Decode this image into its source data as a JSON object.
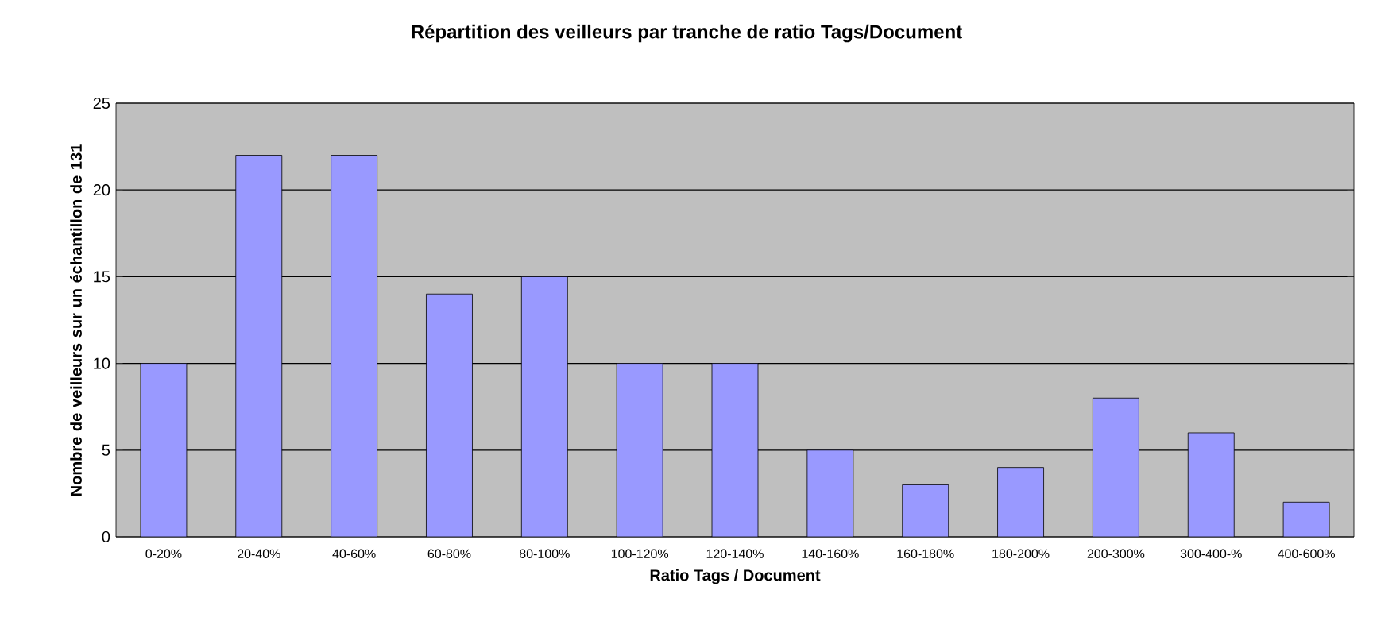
{
  "chart_data": {
    "type": "bar",
    "title": "Répartition des veilleurs par tranche de ratio Tags/Document",
    "xlabel": "Ratio Tags / Document",
    "ylabel": "Nombre de veilleurs sur un échantillon de 131",
    "categories": [
      "0-20%",
      "20-40%",
      "40-60%",
      "60-80%",
      "80-100%",
      "100-120%",
      "120-140%",
      "140-160%",
      "160-180%",
      "180-200%",
      "200-300%",
      "300-400-%",
      "400-600%"
    ],
    "values": [
      10,
      22,
      22,
      14,
      15,
      10,
      10,
      5,
      3,
      4,
      8,
      6,
      2
    ],
    "color": "#9999ff",
    "ylim": [
      0,
      25
    ],
    "yticks": [
      0,
      5,
      10,
      15,
      20,
      25
    ],
    "grid": "y"
  }
}
